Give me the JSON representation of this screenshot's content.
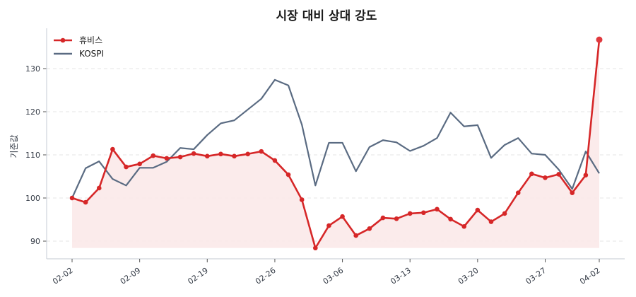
{
  "chart_data": {
    "type": "line",
    "title": "시장 대비 상대 강도",
    "xlabel": "",
    "ylabel": "기준값",
    "ylim": [
      86,
      139
    ],
    "yticks": [
      90,
      100,
      110,
      120,
      130
    ],
    "grid": "horizontal dashed",
    "legend_position": "upper left",
    "xtick_labels": [
      "02-02",
      "02-09",
      "02-19",
      "02-26",
      "03-06",
      "03-13",
      "03-20",
      "03-27",
      "04-02"
    ],
    "xtick_indices": [
      0,
      5,
      10,
      15,
      20,
      25,
      30,
      35,
      39
    ],
    "series": [
      {
        "name": "휴비스",
        "color": "#d62728",
        "markers": true,
        "fill": true,
        "fill_color": "#fbe9e9",
        "values": [
          100.0,
          99.0,
          102.3,
          111.3,
          107.2,
          107.9,
          109.8,
          109.2,
          109.5,
          110.3,
          109.7,
          110.2,
          109.7,
          110.2,
          110.8,
          108.7,
          105.4,
          99.6,
          88.4,
          93.6,
          95.7,
          91.3,
          92.9,
          95.4,
          95.2,
          96.4,
          96.6,
          97.4,
          95.1,
          93.4,
          97.2,
          94.5,
          96.4,
          101.2,
          105.6,
          104.7,
          105.5,
          101.2,
          105.3,
          136.7
        ]
      },
      {
        "name": "KOSPI",
        "color": "#5a6b82",
        "markers": false,
        "fill": false,
        "values": [
          100.0,
          106.9,
          108.5,
          104.4,
          102.9,
          107.0,
          107.0,
          108.4,
          111.6,
          111.3,
          114.6,
          117.3,
          118.0,
          120.5,
          123.0,
          127.4,
          126.1,
          117.0,
          102.9,
          112.8,
          112.8,
          106.2,
          111.8,
          113.4,
          112.9,
          110.9,
          112.1,
          113.9,
          119.8,
          116.6,
          116.9,
          109.3,
          112.3,
          113.9,
          110.3,
          110.0,
          106.6,
          102.1,
          110.8,
          105.7
        ]
      }
    ]
  }
}
